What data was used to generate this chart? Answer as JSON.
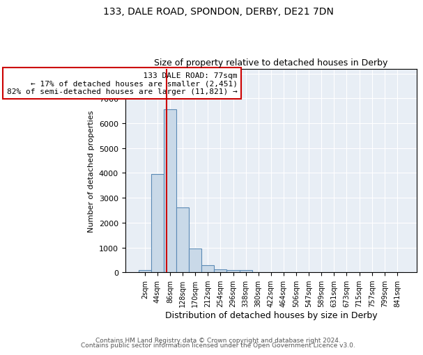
{
  "title1": "133, DALE ROAD, SPONDON, DERBY, DE21 7DN",
  "title2": "Size of property relative to detached houses in Derby",
  "xlabel": "Distribution of detached houses by size in Derby",
  "ylabel": "Number of detached properties",
  "annotation_lines": [
    "133 DALE ROAD: 77sqm",
    "← 17% of detached houses are smaller (2,451)",
    "82% of semi-detached houses are larger (11,821) →"
  ],
  "bin_labels": [
    "2sqm",
    "44sqm",
    "86sqm",
    "128sqm",
    "170sqm",
    "212sqm",
    "254sqm",
    "296sqm",
    "338sqm",
    "380sqm",
    "422sqm",
    "464sqm",
    "506sqm",
    "547sqm",
    "589sqm",
    "631sqm",
    "673sqm",
    "715sqm",
    "757sqm",
    "799sqm",
    "841sqm"
  ],
  "bar_heights": [
    80,
    3950,
    6550,
    2600,
    950,
    300,
    110,
    80,
    80,
    0,
    0,
    0,
    0,
    0,
    0,
    0,
    0,
    0,
    0,
    0,
    0
  ],
  "bar_color": "#c9d9e8",
  "bar_edge_color": "#5b8ab5",
  "red_line_x": 1.75,
  "red_line_color": "#cc0000",
  "annotation_box_color": "#cc0000",
  "ylim": [
    0,
    8200
  ],
  "background_color": "#e8eef5",
  "footer_line1": "Contains HM Land Registry data © Crown copyright and database right 2024.",
  "footer_line2": "Contains public sector information licensed under the Open Government Licence v3.0."
}
